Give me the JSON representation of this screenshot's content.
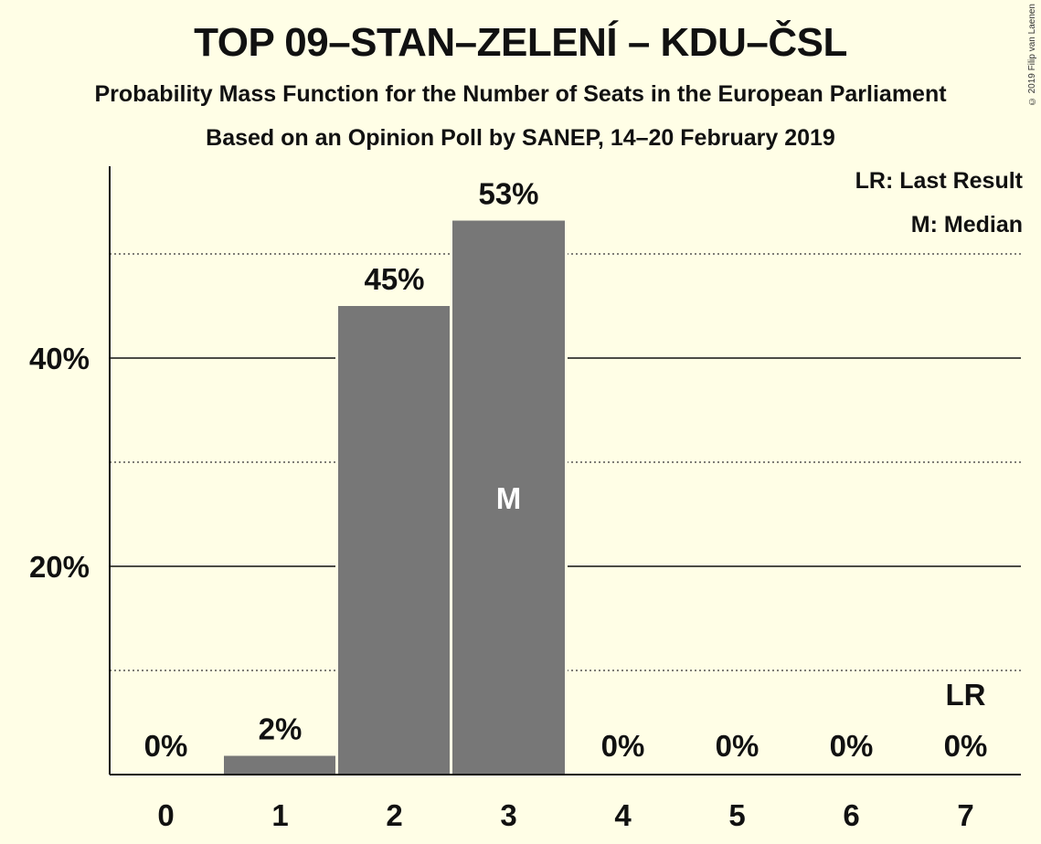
{
  "header": {
    "title": "TOP 09–STAN–ZELENÍ – KDU–ČSL",
    "subtitle_line1": "Probability Mass Function for the Number of Seats in the European Parliament",
    "subtitle_line2": "Based on an Opinion Poll by SANEP, 14–20 February 2019",
    "copyright": "© 2019 Filip van Laenen"
  },
  "legend": {
    "last_result": "LR: Last Result",
    "median": "M: Median"
  },
  "colors": {
    "background": "#FFFEE6",
    "bar": "#777777",
    "text": "#111111"
  },
  "chart_data": {
    "type": "bar",
    "categories": [
      "0",
      "1",
      "2",
      "3",
      "4",
      "5",
      "6",
      "7"
    ],
    "values": [
      0,
      1.8,
      45,
      53.2,
      0,
      0,
      0,
      0
    ],
    "data_labels": [
      "0%",
      "2%",
      "45%",
      "53%",
      "0%",
      "0%",
      "0%",
      "0%"
    ],
    "ylim": [
      0,
      58
    ],
    "y_ticks": [
      {
        "value": 20,
        "label": "20%"
      },
      {
        "value": 40,
        "label": "40%"
      }
    ],
    "minor_gridlines": [
      10,
      30,
      50
    ],
    "median_category": "3",
    "median_marker": "M",
    "last_result_category": "7",
    "last_result_marker": "LR",
    "xlabel": "",
    "ylabel": ""
  }
}
